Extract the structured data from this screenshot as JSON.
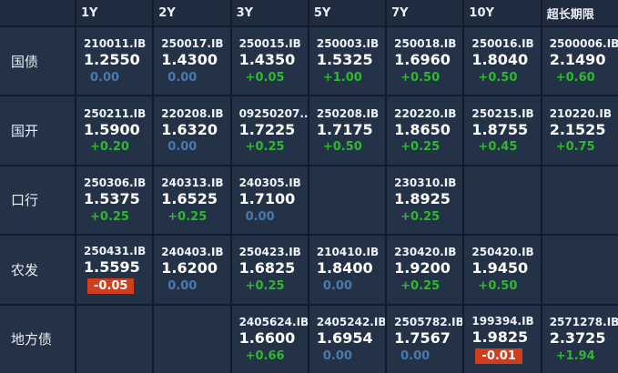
{
  "colors": {
    "positive_text": "#2db82d",
    "zero_text": "#4a79ad",
    "negative_bg": "#cf3f1e",
    "cell_bg": "#243247",
    "header_bg": "#1f2b3e",
    "grid_line": "#121c2b"
  },
  "table": {
    "column_headers": [
      "1Y",
      "2Y",
      "3Y",
      "5Y",
      "7Y",
      "10Y",
      "超长期限"
    ],
    "rows": [
      {
        "label": "国债",
        "cells": [
          {
            "code": "210011.IB",
            "value": "1.2550",
            "change": "0.00"
          },
          {
            "code": "250017.IB",
            "value": "1.4300",
            "change": "0.00"
          },
          {
            "code": "250015.IB",
            "value": "1.4350",
            "change": "+0.05"
          },
          {
            "code": "250003.IB",
            "value": "1.5325",
            "change": "+1.00"
          },
          {
            "code": "250018.IB",
            "value": "1.6960",
            "change": "+0.50"
          },
          {
            "code": "250016.IB",
            "value": "1.8040",
            "change": "+0.50"
          },
          {
            "code": "2500006.IB",
            "value": "2.1490",
            "change": "+0.60"
          }
        ]
      },
      {
        "label": "国开",
        "cells": [
          {
            "code": "250211.IB",
            "value": "1.5900",
            "change": "+0.20"
          },
          {
            "code": "220208.IB",
            "value": "1.6320",
            "change": "0.00"
          },
          {
            "code": "09250207...",
            "value": "1.7225",
            "change": "+0.25"
          },
          {
            "code": "250208.IB",
            "value": "1.7175",
            "change": "+0.50"
          },
          {
            "code": "220220.IB",
            "value": "1.8650",
            "change": "+0.25"
          },
          {
            "code": "250215.IB",
            "value": "1.8755",
            "change": "+0.45"
          },
          {
            "code": "210220.IB",
            "value": "2.1525",
            "change": "+0.75"
          }
        ]
      },
      {
        "label": "口行",
        "cells": [
          {
            "code": "250306.IB",
            "value": "1.5375",
            "change": "+0.25"
          },
          {
            "code": "240313.IB",
            "value": "1.6525",
            "change": "+0.25"
          },
          {
            "code": "240305.IB",
            "value": "1.7100",
            "change": "0.00"
          },
          null,
          {
            "code": "230310.IB",
            "value": "1.8925",
            "change": "+0.25"
          },
          null,
          null
        ]
      },
      {
        "label": "农发",
        "cells": [
          {
            "code": "250431.IB",
            "value": "1.5595",
            "change": "-0.05"
          },
          {
            "code": "240403.IB",
            "value": "1.6200",
            "change": "0.00"
          },
          {
            "code": "250423.IB",
            "value": "1.6825",
            "change": "+0.25"
          },
          {
            "code": "210410.IB",
            "value": "1.8400",
            "change": "0.00"
          },
          {
            "code": "230420.IB",
            "value": "1.9200",
            "change": "+0.25"
          },
          {
            "code": "250420.IB",
            "value": "1.9450",
            "change": "+0.50"
          },
          null
        ]
      },
      {
        "label": "地方债",
        "cells": [
          null,
          null,
          {
            "code": "2405624.IB",
            "value": "1.6600",
            "change": "+0.66"
          },
          {
            "code": "2405242.IB",
            "value": "1.6954",
            "change": "0.00"
          },
          {
            "code": "2505782.IB",
            "value": "1.7567",
            "change": "0.00"
          },
          {
            "code": "199394.IB",
            "value": "1.9825",
            "change": "-0.01"
          },
          {
            "code": "2571278.IB",
            "value": "2.3725",
            "change": "+1.94"
          }
        ]
      }
    ]
  }
}
